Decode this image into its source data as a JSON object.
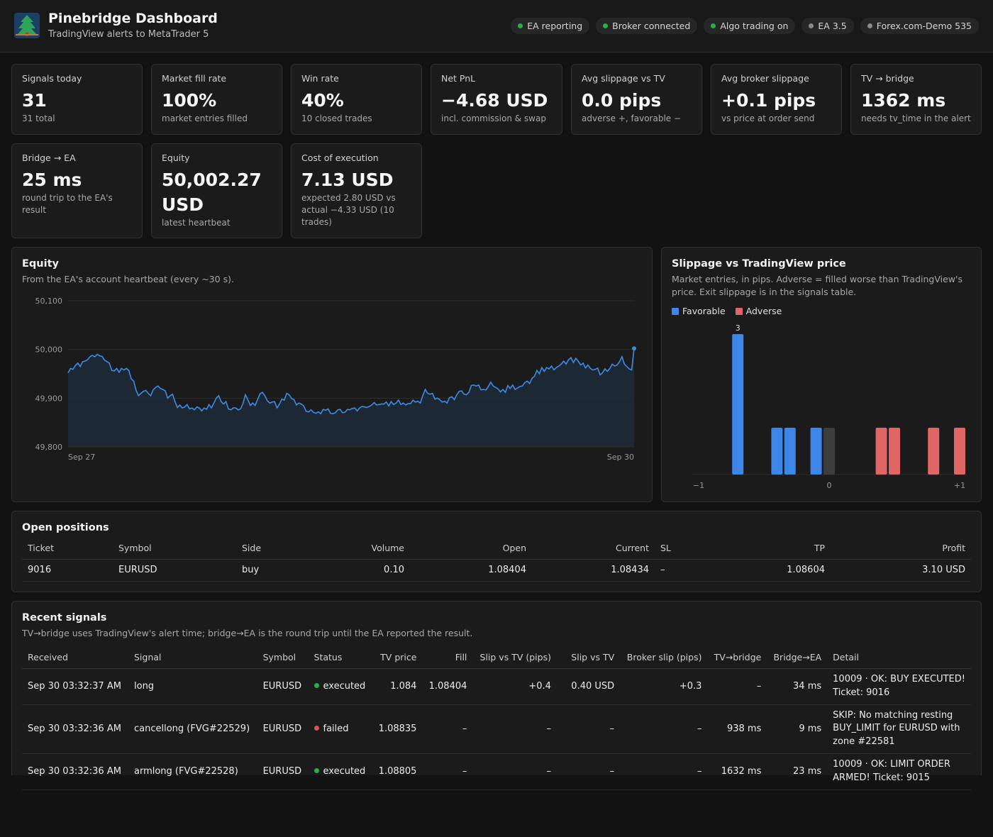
{
  "header": {
    "title": "Pinebridge Dashboard",
    "subtitle": "TradingView alerts to MetaTrader 5",
    "pills": [
      {
        "label": "EA reporting",
        "color": "#22b14c"
      },
      {
        "label": "Broker connected",
        "color": "#22b14c"
      },
      {
        "label": "Algo trading on",
        "color": "#22b14c"
      },
      {
        "label": "EA 3.5",
        "color": "#8a8a8a"
      },
      {
        "label": "Forex.com-Demo 535",
        "color": "#8a8a8a"
      }
    ]
  },
  "stats": [
    {
      "label": "Signals today",
      "value": "31",
      "note": "31 total"
    },
    {
      "label": "Market fill rate",
      "value": "100%",
      "note": "market entries filled"
    },
    {
      "label": "Win rate",
      "value": "40%",
      "note": "10 closed trades"
    },
    {
      "label": "Net PnL",
      "value": "−4.68 USD",
      "note": "incl. commission & swap"
    },
    {
      "label": "Avg slippage vs TV",
      "value": "0.0 pips",
      "note": "adverse +, favorable −"
    },
    {
      "label": "Avg broker slippage",
      "value": "+0.1 pips",
      "note": "vs price at order send"
    },
    {
      "label": "TV → bridge",
      "value": "1362 ms",
      "note": "needs tv_time in the alert"
    },
    {
      "label": "Bridge → EA",
      "value": "25 ms",
      "note": "round trip to the EA's result"
    },
    {
      "label": "Equity",
      "value": "50,002.27 USD",
      "note": "latest heartbeat"
    },
    {
      "label": "Cost of execution",
      "value": "7.13 USD",
      "note": "expected 2.80 USD vs actual −4.33 USD (10 trades)"
    }
  ],
  "equity_panel": {
    "title": "Equity",
    "subtitle": "From the EA's account heartbeat (every ~30 s)."
  },
  "slippage_panel": {
    "title": "Slippage vs TradingView price",
    "subtitle": "Market entries, in pips. Adverse = filled worse than TradingView's price. Exit slippage is in the signals table."
  },
  "chart_data": [
    {
      "type": "area",
      "y_ticks": [
        "50,100",
        "50,000",
        "49,900",
        "49,800"
      ],
      "ylim": [
        49800,
        50100
      ],
      "x_ticks": [
        "Sep 27",
        "Sep 30"
      ],
      "grid": true,
      "series": [
        {
          "values": [
            49952,
            49961,
            49959,
            49967,
            49972,
            49965,
            49975,
            49976,
            49979,
            49985,
            49988,
            49985,
            49990,
            49987,
            49986,
            49978,
            49975,
            49972,
            49957,
            49956,
            49961,
            49953,
            49961,
            49958,
            49961,
            49957,
            49940,
            49935,
            49916,
            49905,
            49910,
            49914,
            49916,
            49910,
            49905,
            49917,
            49922,
            49925,
            49920,
            49918,
            49915,
            49900,
            49905,
            49908,
            49893,
            49881,
            49886,
            49880,
            49882,
            49887,
            49878,
            49880,
            49876,
            49882,
            49880,
            49874,
            49880,
            49877,
            49887,
            49880,
            49890,
            49900,
            49905,
            49893,
            49888,
            49893,
            49878,
            49876,
            49880,
            49880,
            49876,
            49878,
            49889,
            49907,
            49897,
            49885,
            49890,
            49885,
            49897,
            49909,
            49912,
            49905,
            49895,
            49890,
            49892,
            49893,
            49880,
            49888,
            49898,
            49896,
            49910,
            49907,
            49899,
            49897,
            49886,
            49890,
            49888,
            49884,
            49873,
            49872,
            49876,
            49871,
            49869,
            49872,
            49868,
            49877,
            49875,
            49878,
            49869,
            49868,
            49870,
            49876,
            49877,
            49870,
            49871,
            49877,
            49876,
            49879,
            49880,
            49874,
            49880,
            49883,
            49882,
            49881,
            49883,
            49886,
            49891,
            49886,
            49887,
            49888,
            49888,
            49892,
            49884,
            49893,
            49887,
            49890,
            49896,
            49887,
            49890,
            49886,
            49889,
            49889,
            49896,
            49892,
            49894,
            49890,
            49905,
            49918,
            49910,
            49908,
            49910,
            49898,
            49900,
            49897,
            49892,
            49894,
            49890,
            49901,
            49903,
            49897,
            49907,
            49914,
            49915,
            49908,
            49907,
            49912,
            49926,
            49927,
            49925,
            49927,
            49917,
            49918,
            49917,
            49924,
            49933,
            49925,
            49922,
            49919,
            49913,
            49918,
            49912,
            49926,
            49920,
            49927,
            49918,
            49921,
            49924,
            49925,
            49932,
            49935,
            49930,
            49941,
            49945,
            49957,
            49950,
            49963,
            49955,
            49963,
            49960,
            49966,
            49958,
            49963,
            49966,
            49970,
            49976,
            49970,
            49979,
            49983,
            49973,
            49982,
            49976,
            49968,
            49972,
            49962,
            49968,
            49961,
            49958,
            49959,
            49962,
            49948,
            49952,
            49960,
            49955,
            49961,
            49970,
            49966,
            49968,
            49975,
            49985,
            49970,
            49965,
            49960,
            49958,
            50002
          ]
        }
      ]
    },
    {
      "type": "bar",
      "legend": [
        {
          "name": "Favorable",
          "color": "#3d85e6"
        },
        {
          "name": "Adverse",
          "color": "#e06666"
        }
      ],
      "legend_position": "top-left",
      "x_ticks": [
        "−1",
        "0",
        "+1"
      ],
      "xlim": [
        -1,
        1
      ],
      "bars": [
        {
          "x": -0.7,
          "count": 3,
          "kind": "favorable",
          "label": "3"
        },
        {
          "x": -0.4,
          "count": 1,
          "kind": "favorable"
        },
        {
          "x": -0.3,
          "count": 1,
          "kind": "favorable"
        },
        {
          "x": -0.1,
          "count": 1,
          "kind": "favorable"
        },
        {
          "x": 0.0,
          "count": 1,
          "kind": "neutral"
        },
        {
          "x": 0.4,
          "count": 1,
          "kind": "adverse"
        },
        {
          "x": 0.5,
          "count": 1,
          "kind": "adverse"
        },
        {
          "x": 0.8,
          "count": 1,
          "kind": "adverse"
        },
        {
          "x": 1.0,
          "count": 1,
          "kind": "adverse"
        }
      ]
    }
  ],
  "positions": {
    "title": "Open positions",
    "columns": [
      "Ticket",
      "Symbol",
      "Side",
      "Volume",
      "Open",
      "Current",
      "SL",
      "TP",
      "Profit"
    ],
    "rows": [
      [
        "9016",
        "EURUSD",
        "buy",
        "0.10",
        "1.08404",
        "1.08434",
        "–",
        "1.08604",
        "3.10 USD"
      ]
    ]
  },
  "signals": {
    "title": "Recent signals",
    "subtitle": "TV→bridge uses TradingView's alert time; bridge→EA is the round trip until the EA reported the result.",
    "columns": [
      "Received",
      "Signal",
      "Symbol",
      "Status",
      "TV price",
      "Fill",
      "Slip vs TV (pips)",
      "Slip vs TV",
      "Broker slip (pips)",
      "TV→bridge",
      "Bridge→EA",
      "Detail"
    ],
    "rows": [
      {
        "received": "Sep 30 03:32:37 AM",
        "signal": "long",
        "symbol": "EURUSD",
        "status": "executed",
        "status_color": "#22b14c",
        "tv_price": "1.084",
        "fill": "1.08404",
        "slip_pips": "+0.4",
        "slip_usd": "0.40 USD",
        "broker_slip": "+0.3",
        "tv_bridge": "–",
        "bridge_ea": "34 ms",
        "detail": "10009 · OK: BUY EXECUTED! Ticket: 9016"
      },
      {
        "received": "Sep 30 03:32:36 AM",
        "signal": "cancellong (FVG#22529)",
        "symbol": "EURUSD",
        "status": "failed",
        "status_color": "#e05252",
        "tv_price": "1.08835",
        "fill": "–",
        "slip_pips": "–",
        "slip_usd": "–",
        "broker_slip": "–",
        "tv_bridge": "938 ms",
        "bridge_ea": "9 ms",
        "detail": "SKIP: No matching resting BUY_LIMIT for EURUSD with zone #22581"
      },
      {
        "received": "Sep 30 03:32:36 AM",
        "signal": "armlong (FVG#22528)",
        "symbol": "EURUSD",
        "status": "executed",
        "status_color": "#22b14c",
        "tv_price": "1.08805",
        "fill": "–",
        "slip_pips": "–",
        "slip_usd": "–",
        "broker_slip": "–",
        "tv_bridge": "1632 ms",
        "bridge_ea": "23 ms",
        "detail": "10009 · OK: LIMIT ORDER ARMED! Ticket: 9015"
      }
    ]
  }
}
